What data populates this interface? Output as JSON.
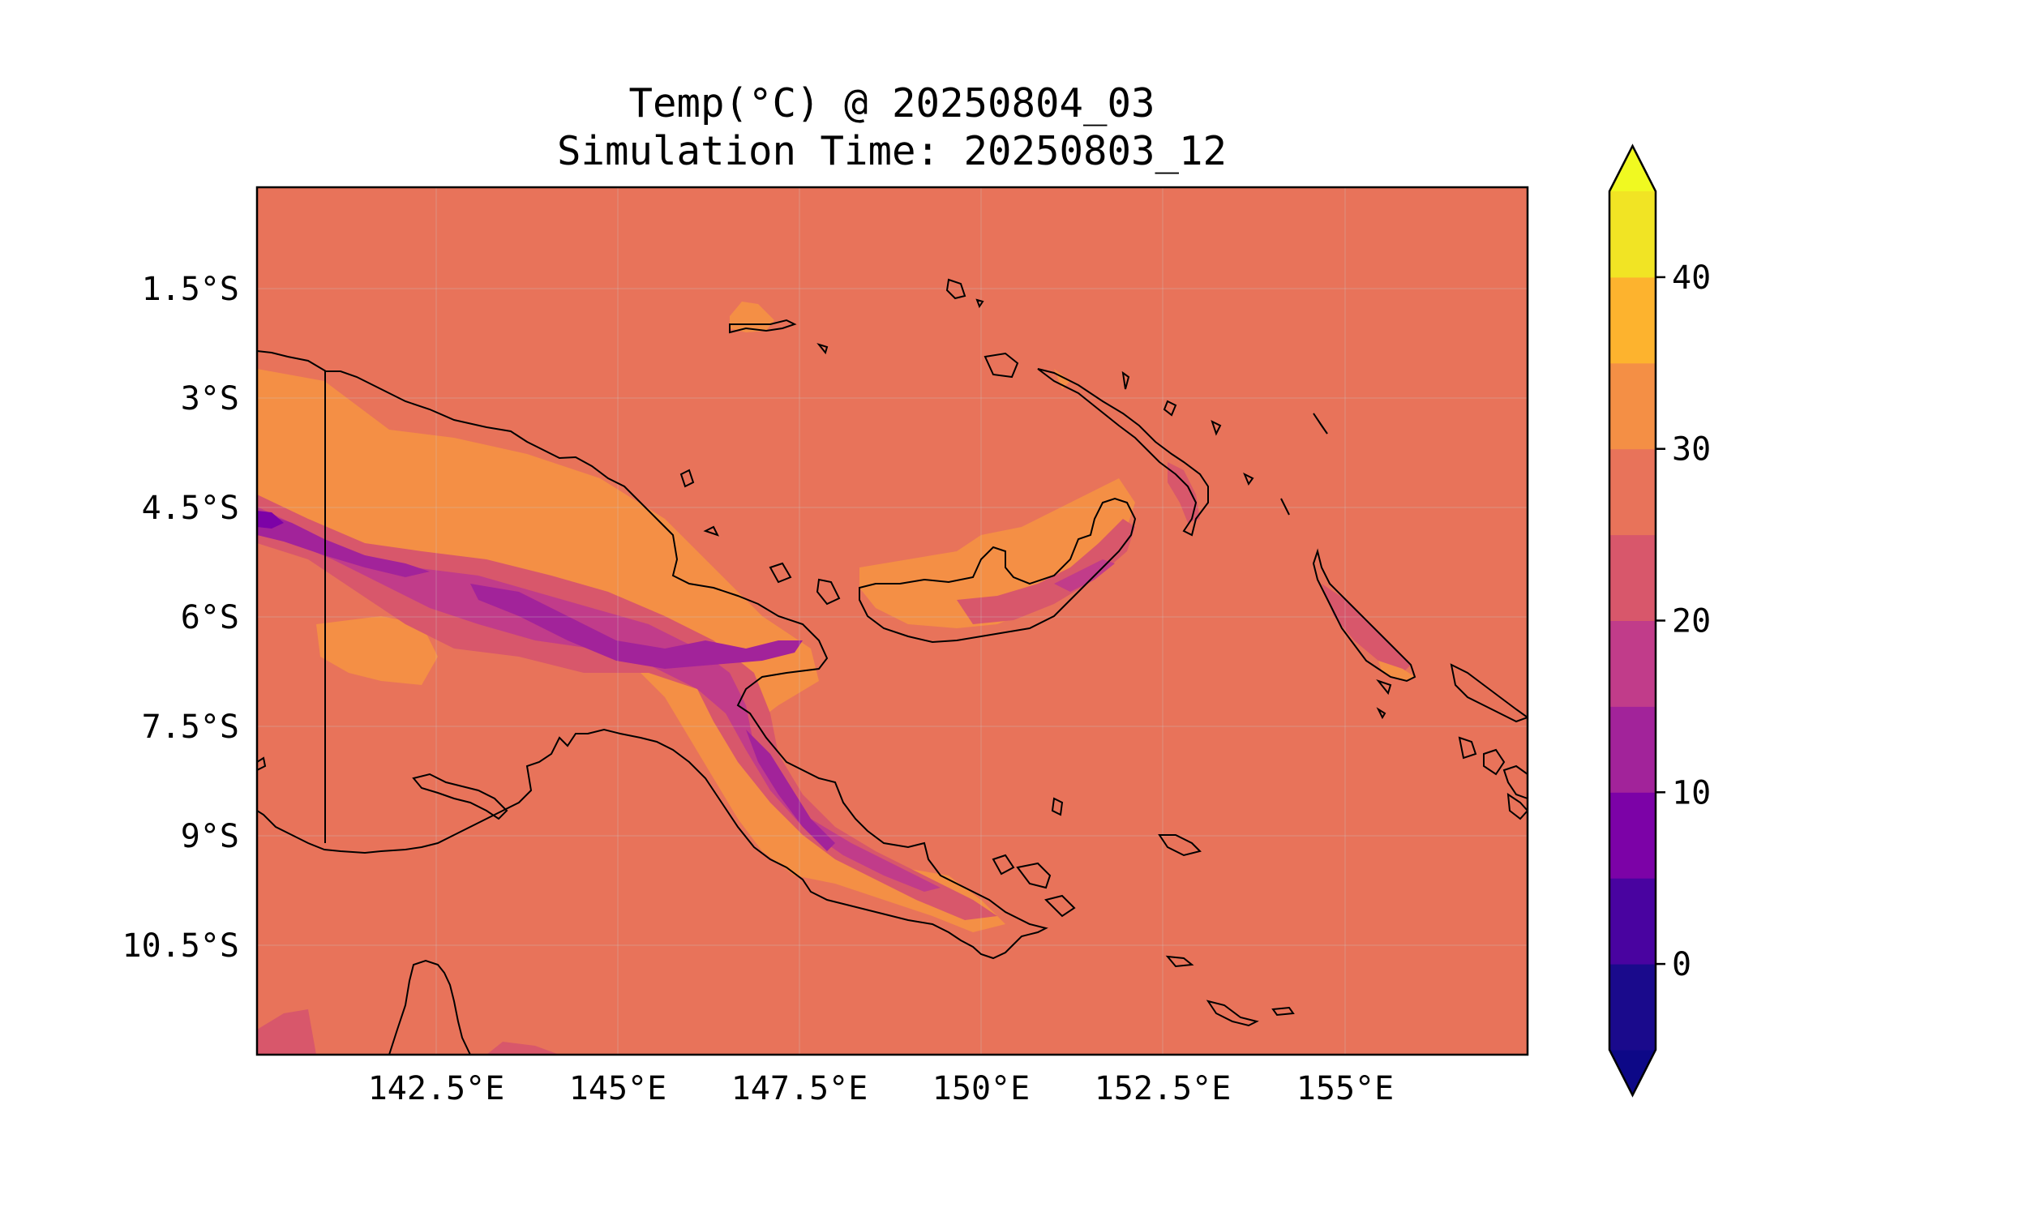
{
  "title": {
    "line1": "Temp(°C) @ 20250804_03",
    "line2": "Simulation Time: 20250803_12"
  },
  "map": {
    "type": "filled-contour",
    "variable": "Temp(°C)",
    "lon_range": [
      140.0,
      157.5
    ],
    "lat_range": [
      -12.0,
      -0.05
    ],
    "x_ticks": [
      "142.5°E",
      "145°E",
      "147.5°E",
      "150°E",
      "152.5°E",
      "155°E"
    ],
    "y_ticks": [
      "1.5°S",
      "3°S",
      "4.5°S",
      "6°S",
      "7.5°S",
      "9°S",
      "10.5°S"
    ],
    "gridlines": true,
    "background_level_color": "#e8735a"
  },
  "colorbar": {
    "ticks": [
      "0",
      "10",
      "20",
      "30",
      "40"
    ],
    "levels": [
      -5,
      0,
      5,
      10,
      15,
      20,
      25,
      30,
      35,
      40,
      45
    ],
    "colors": [
      "#1a0a8c",
      "#4903a0",
      "#7c02a7",
      "#a2239a",
      "#c13c8a",
      "#d8576b",
      "#e8735a",
      "#f48f45",
      "#fdb32e",
      "#f1e424"
    ],
    "extend": "both",
    "under_color": "#0d0887",
    "over_color": "#f0f921"
  }
}
